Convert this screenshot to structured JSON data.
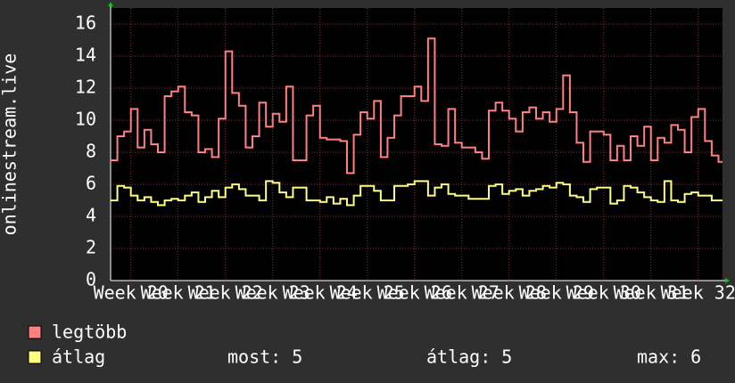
{
  "chart_data": {
    "type": "step",
    "y_label": "onlinestream.live",
    "xlim": [
      0,
      90.6
    ],
    "xticks": [
      {
        "value": 3,
        "label": "Week 20"
      },
      {
        "value": 10,
        "label": "Week 21"
      },
      {
        "value": 17,
        "label": "Week 22"
      },
      {
        "value": 24,
        "label": "Week 23"
      },
      {
        "value": 31,
        "label": "Week 24"
      },
      {
        "value": 38,
        "label": "Week 25"
      },
      {
        "value": 45,
        "label": "Week 26"
      },
      {
        "value": 52,
        "label": "Week 27"
      },
      {
        "value": 59,
        "label": "Week 28"
      },
      {
        "value": 66,
        "label": "Week 29"
      },
      {
        "value": 73,
        "label": "Week 30"
      },
      {
        "value": 80,
        "label": "Week 31"
      },
      {
        "value": 87,
        "label": "Week 32"
      }
    ],
    "ylim": [
      0,
      17
    ],
    "yticks": [
      0,
      2,
      4,
      6,
      8,
      10,
      12,
      14,
      16
    ],
    "grid": true,
    "x": [
      0,
      1,
      2,
      3,
      4,
      5,
      6,
      7,
      8,
      9,
      10,
      11,
      12,
      13,
      14,
      15,
      16,
      17,
      18,
      19,
      20,
      21,
      22,
      23,
      24,
      25,
      26,
      27,
      28,
      29,
      30,
      31,
      32,
      33,
      34,
      35,
      36,
      37,
      38,
      39,
      40,
      41,
      42,
      43,
      44,
      45,
      46,
      47,
      48,
      49,
      50,
      51,
      52,
      53,
      54,
      55,
      56,
      57,
      58,
      59,
      60,
      61,
      62,
      63,
      64,
      65,
      66,
      67,
      68,
      69,
      70,
      71,
      72,
      73,
      74,
      75,
      76,
      77,
      78,
      79,
      80,
      81,
      82,
      83,
      84,
      85,
      86,
      87,
      88,
      89,
      90
    ],
    "series": [
      {
        "name": "legtöbb",
        "color": "#ff8080",
        "values": [
          7.5,
          9.0,
          9.3,
          10.7,
          8.3,
          9.4,
          8.5,
          8.0,
          11.5,
          11.8,
          12.1,
          10.5,
          10.3,
          8.0,
          8.2,
          7.7,
          10.1,
          14.3,
          11.7,
          10.9,
          8.3,
          9.0,
          11.1,
          9.6,
          10.4,
          9.9,
          12.1,
          7.5,
          7.5,
          10.3,
          10.9,
          8.9,
          8.8,
          8.8,
          8.7,
          6.7,
          9.1,
          10.5,
          10.1,
          11.2,
          7.7,
          8.9,
          10.3,
          11.5,
          11.5,
          12.1,
          11.2,
          15.1,
          8.5,
          8.4,
          10.7,
          8.6,
          8.3,
          8.3,
          8.0,
          7.6,
          10.6,
          11.1,
          10.6,
          10.1,
          9.3,
          10.5,
          10.8,
          10.1,
          10.5,
          9.9,
          10.7,
          12.8,
          10.5,
          8.6,
          7.4,
          9.3,
          9.3,
          9.1,
          7.5,
          8.4,
          7.5,
          9.0,
          8.4,
          9.6,
          7.5,
          8.9,
          8.6,
          9.7,
          9.4,
          8.0,
          10.2,
          10.7,
          8.7,
          7.8,
          7.4
        ]
      },
      {
        "name": "átlag",
        "color": "#ffff80",
        "values": [
          5.0,
          5.9,
          5.8,
          5.3,
          5.0,
          5.2,
          4.9,
          4.7,
          5.0,
          5.1,
          5.0,
          5.3,
          5.5,
          4.9,
          5.2,
          5.6,
          5.2,
          5.8,
          6.0,
          5.7,
          5.3,
          5.3,
          5.0,
          6.2,
          6.1,
          5.5,
          5.2,
          5.8,
          5.8,
          5.0,
          5.0,
          4.9,
          5.2,
          4.8,
          5.1,
          4.7,
          5.3,
          5.9,
          5.9,
          5.6,
          5.0,
          5.0,
          5.9,
          5.9,
          6.0,
          6.2,
          6.2,
          5.3,
          5.8,
          6.0,
          5.4,
          5.3,
          5.3,
          5.1,
          5.1,
          5.1,
          5.9,
          6.0,
          5.4,
          5.6,
          5.7,
          5.3,
          5.6,
          5.7,
          5.9,
          5.8,
          6.1,
          6.0,
          5.3,
          5.2,
          4.9,
          5.7,
          5.8,
          5.8,
          4.8,
          5.0,
          5.9,
          5.8,
          5.5,
          5.2,
          5.0,
          4.9,
          6.2,
          5.0,
          4.9,
          5.4,
          5.5,
          5.3,
          5.3,
          5.0,
          5.0
        ]
      }
    ],
    "stats": [
      {
        "label": "most:",
        "value": 5
      },
      {
        "label": "átlag:",
        "value": 5
      },
      {
        "label": "max:",
        "value": 6
      }
    ]
  }
}
